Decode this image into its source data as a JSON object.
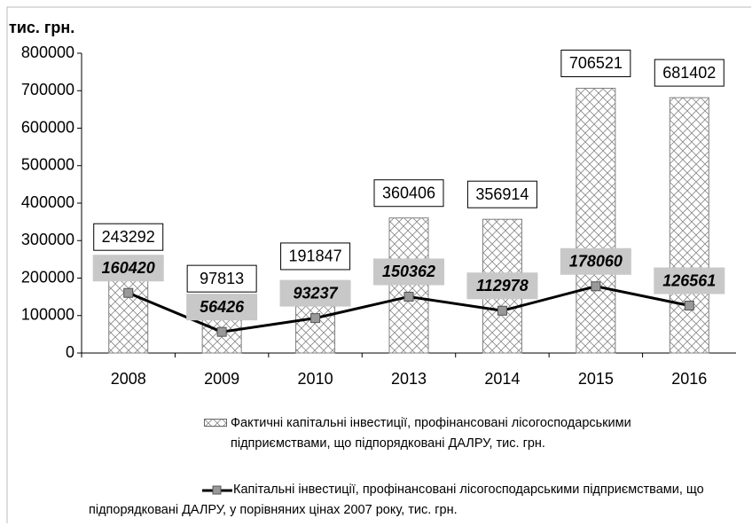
{
  "chart_data": {
    "type": "bar",
    "y_label": "тис. грн.",
    "categories": [
      "2008",
      "2009",
      "2010",
      "2013",
      "2014",
      "2015",
      "2016"
    ],
    "series": [
      {
        "name": "Фактичні капітальні інвестиції, профінансовані лісогосподарськими підприємствами, що підпорядковані ДАЛРУ, тис. грн.",
        "type": "bar",
        "color": "#808080",
        "values": [
          243292,
          97813,
          191847,
          360406,
          356914,
          706521,
          681402
        ]
      },
      {
        "name": "Капітальні інвестиції, профінансовані лісогосподарськими підприємствами, що підпорядковані ДАЛРУ, у порівняних цінах 2007 року, тис. грн.",
        "type": "line",
        "color": "#000000",
        "values": [
          160420,
          56426,
          93237,
          150362,
          112978,
          178060,
          126561
        ]
      }
    ],
    "ylim": [
      0,
      800000
    ],
    "yticks": [
      0,
      100000,
      200000,
      300000,
      400000,
      500000,
      600000,
      700000,
      800000
    ]
  }
}
